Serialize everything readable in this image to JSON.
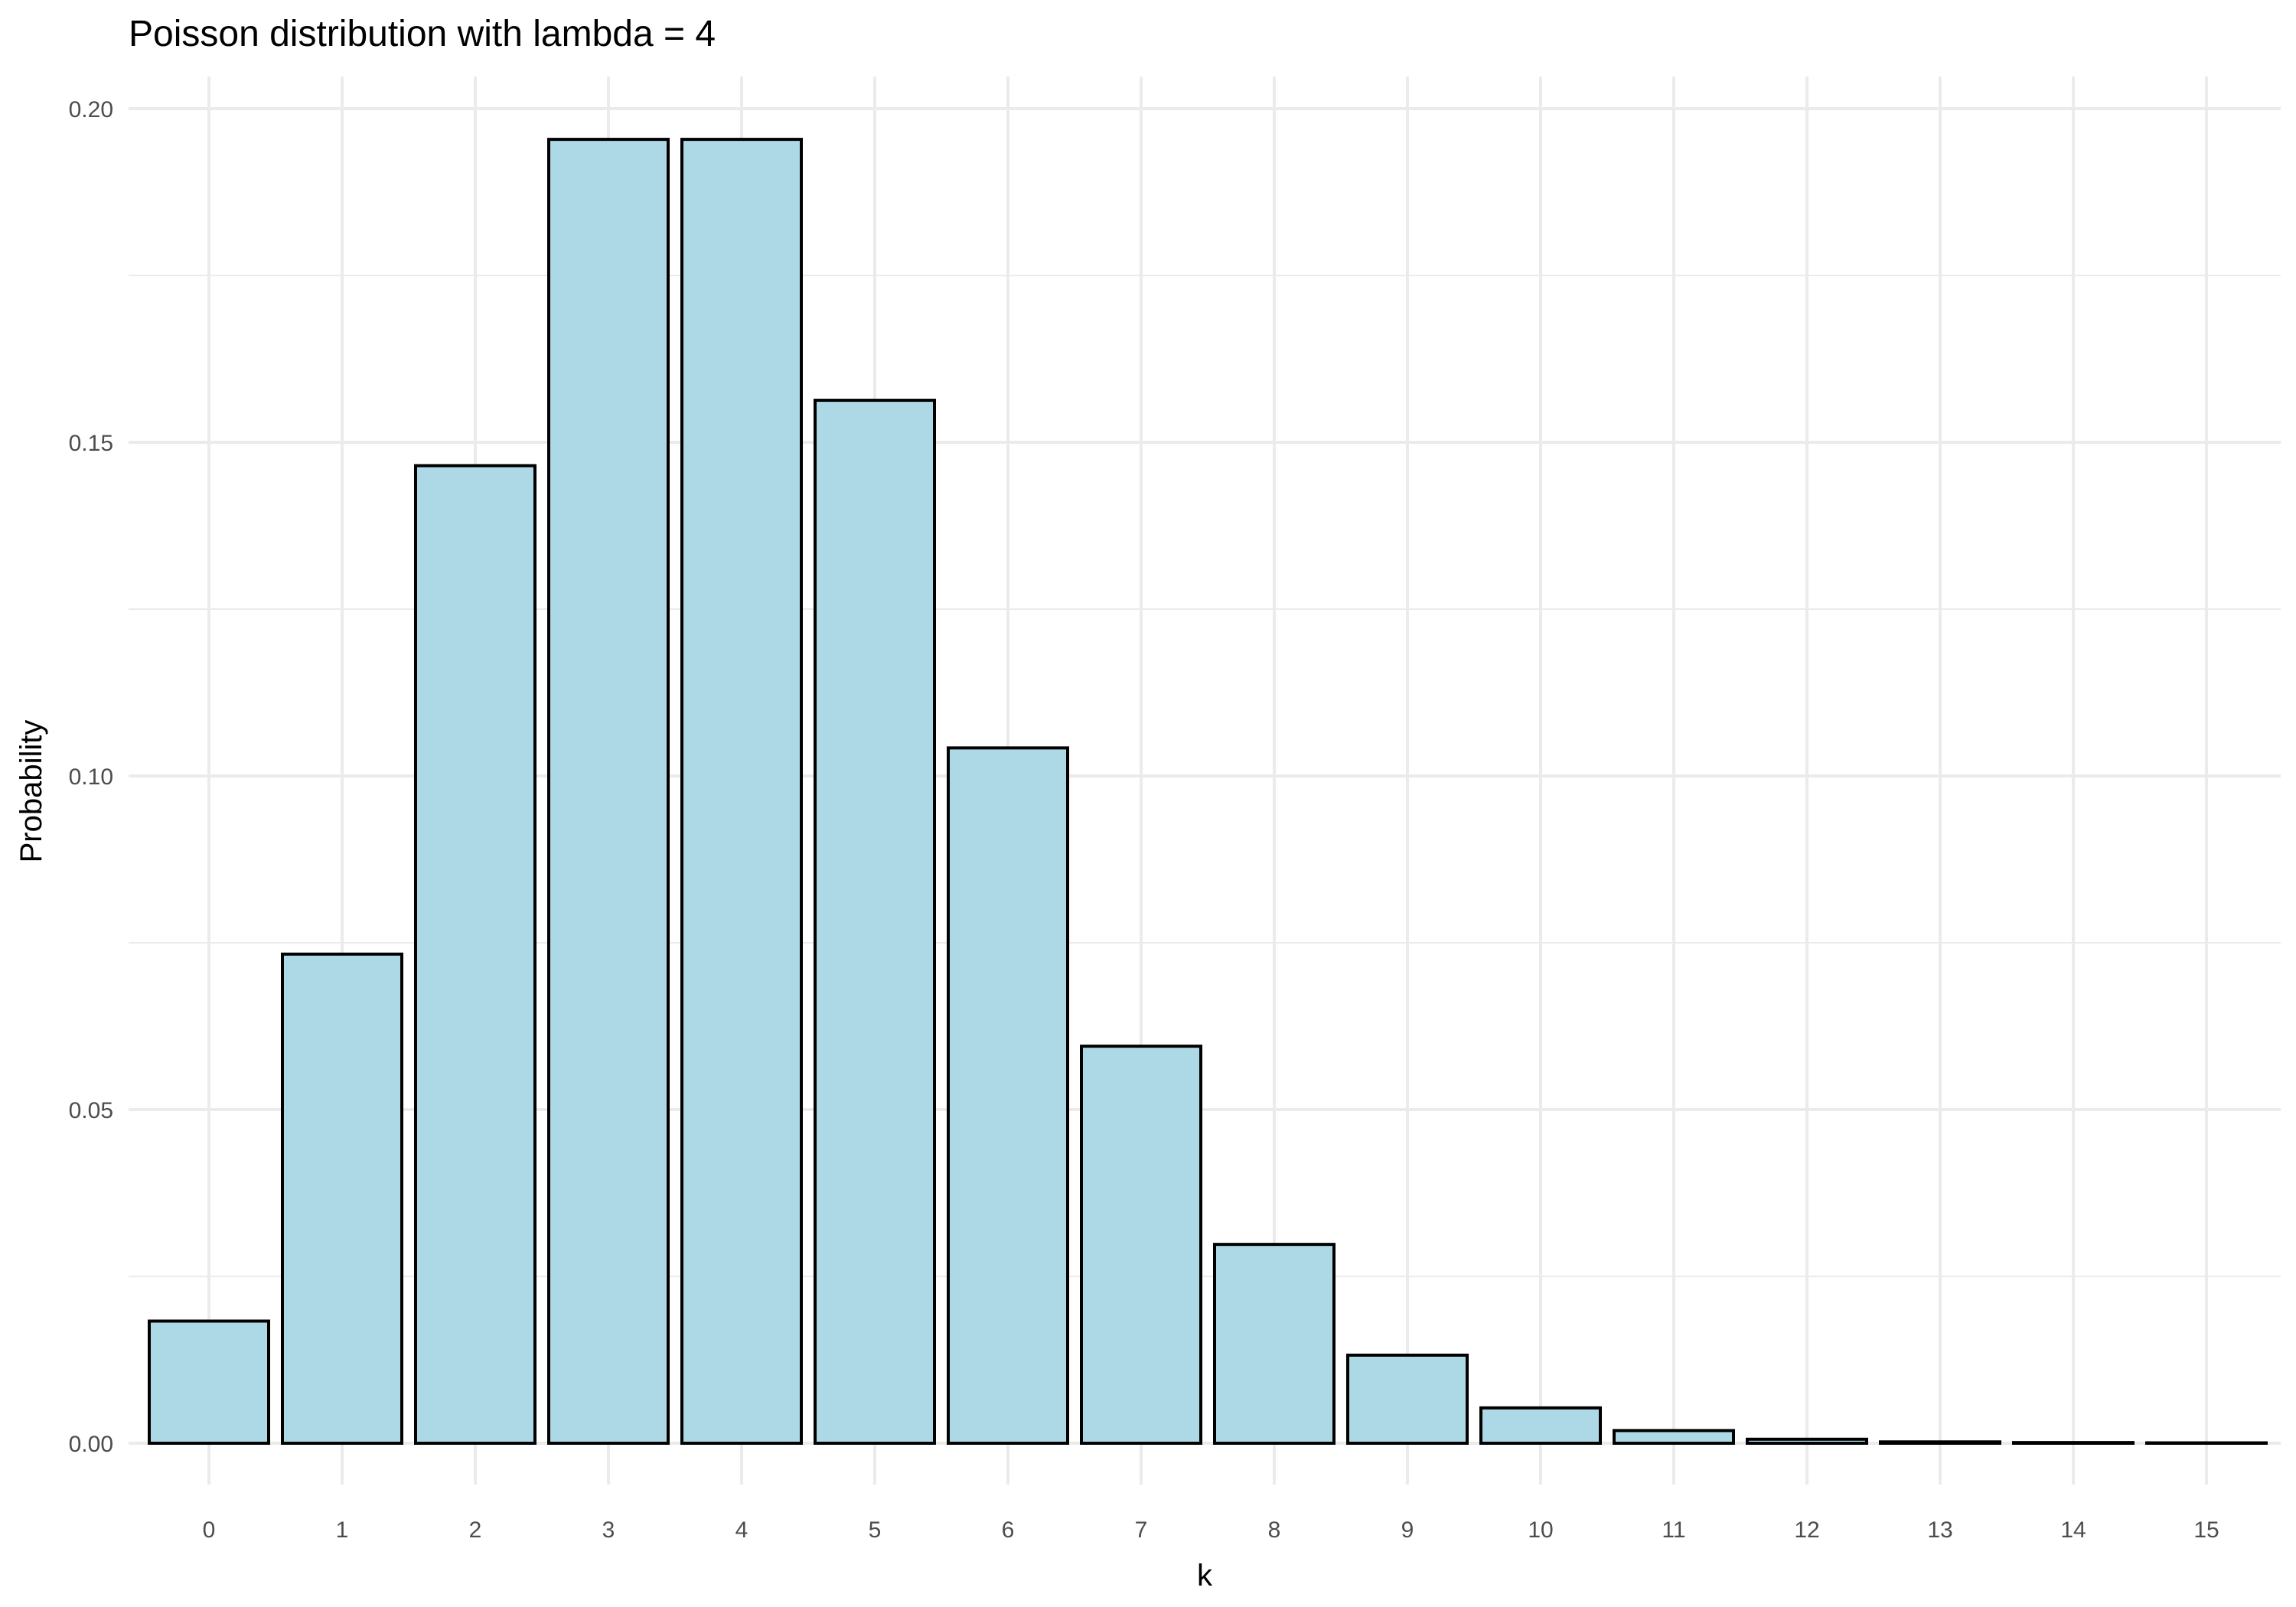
{
  "chart_data": {
    "type": "bar",
    "title": "Poisson distribution with lambda = 4",
    "xlabel": "k",
    "ylabel": "Probability",
    "categories": [
      "0",
      "1",
      "2",
      "3",
      "4",
      "5",
      "6",
      "7",
      "8",
      "9",
      "10",
      "11",
      "12",
      "13",
      "14",
      "15"
    ],
    "values": [
      0.0183,
      0.0733,
      0.1465,
      0.1954,
      0.1954,
      0.1563,
      0.1042,
      0.0595,
      0.0298,
      0.0132,
      0.0053,
      0.0019,
      0.0006,
      0.0002,
      0.0001,
      2e-05
    ],
    "ylim": [
      0,
      0.2
    ],
    "yticks": [
      "0.00",
      "0.05",
      "0.10",
      "0.15",
      "0.20"
    ],
    "grid": true,
    "bar_fill": "#add8e6",
    "bar_outline": "#000000"
  }
}
